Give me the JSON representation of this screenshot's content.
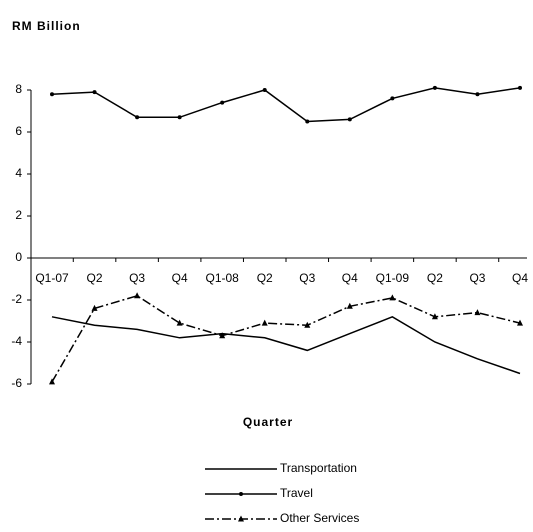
{
  "chart_data": {
    "type": "line",
    "title": "RM Billion",
    "x_label": "Quarter",
    "categories": [
      "Q1-07",
      "Q2",
      "Q3",
      "Q4",
      "Q1-08",
      "Q2",
      "Q3",
      "Q4",
      "Q1-09",
      "Q2",
      "Q3",
      "Q4"
    ],
    "series": [
      {
        "name": "Transportation",
        "color": "#000000",
        "dash": "solid",
        "marker": "none",
        "values": [
          -2.8,
          -3.2,
          -3.4,
          -3.8,
          -3.6,
          -3.8,
          -4.4,
          -3.6,
          -2.8,
          -4.0,
          -4.8,
          -5.5
        ]
      },
      {
        "name": "Travel",
        "color": "#000000",
        "dash": "solid",
        "marker": "circle",
        "values": [
          7.8,
          7.9,
          6.7,
          6.7,
          7.4,
          8.0,
          6.5,
          6.6,
          7.6,
          8.1,
          7.8,
          8.1
        ]
      },
      {
        "name": "Other Services",
        "color": "#000000",
        "dash": "dashdot",
        "marker": "triangle",
        "values": [
          -5.9,
          -2.4,
          -1.8,
          -3.1,
          -3.7,
          -3.1,
          -3.2,
          -2.3,
          -1.9,
          -2.8,
          -2.6,
          -3.1
        ]
      }
    ],
    "ylim": [
      -6,
      8
    ],
    "yticks": [
      -6,
      -4,
      -2,
      0,
      2,
      4,
      6,
      8
    ],
    "grid": false,
    "legend": "bottom"
  }
}
